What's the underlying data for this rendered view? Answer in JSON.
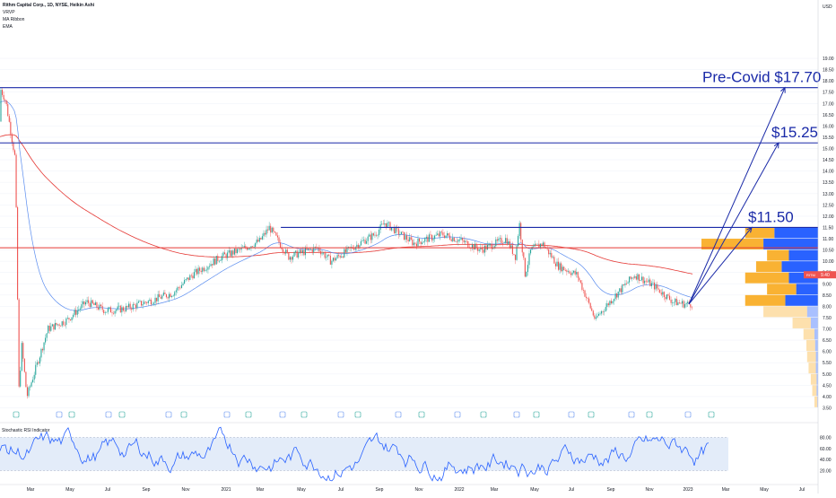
{
  "header": {
    "title": "Rithm Capital Corp., 1D, NYSE, Heikin Ashi",
    "indicators": [
      "VRVP",
      "MA Ribbon",
      "EMA"
    ]
  },
  "price_axis": {
    "currency": "USD",
    "ticks": [
      "19.00",
      "18.50",
      "18.00",
      "17.50",
      "17.00",
      "16.50",
      "16.00",
      "15.50",
      "15.00",
      "14.50",
      "14.00",
      "13.50",
      "13.00",
      "12.50",
      "12.00",
      "11.50",
      "11.00",
      "10.50",
      "10.00",
      "9.50",
      "9.00",
      "8.50",
      "8.00",
      "7.50",
      "7.00",
      "6.50",
      "6.00",
      "5.50",
      "5.00",
      "4.50",
      "4.00",
      "3.50"
    ],
    "last_price": "9.40",
    "last_label": "RITM"
  },
  "oscillator": {
    "name": "Stochastic RSI Indicator",
    "ticks": [
      "80.00",
      "60.00",
      "40.00",
      "20.00"
    ]
  },
  "time_axis": {
    "labels": [
      "Mar",
      "May",
      "Jul",
      "Sep",
      "Nov",
      "2021",
      "Mar",
      "May",
      "Jul",
      "Sep",
      "Nov",
      "2022",
      "Mar",
      "May",
      "Jul",
      "Sep",
      "Nov",
      "2023",
      "Mar",
      "May",
      "Jul"
    ]
  },
  "annotations": {
    "pre_covid": "Pre-Covid  $17.70",
    "mid_target": "$15.25",
    "near_target": "$11.50"
  },
  "colors": {
    "up": "#26a69a",
    "down": "#ef5350",
    "annotation_lines": "#1a2aa8",
    "ema": "#e53935",
    "ma": "#5b8def",
    "vrvp_up": "#2962ff",
    "vrvp_down": "#f9b233",
    "stoch_band": "#e3ecf9",
    "stoch_line": "#2962ff"
  },
  "chart_data": {
    "type": "candlestick",
    "chart_style": "Heikin Ashi",
    "timeframe": "1D",
    "ylim": [
      3.2,
      19.2
    ],
    "key_prices": [
      {
        "date": "2020-02",
        "value": 17.7,
        "note": "pre-covid high"
      },
      {
        "date": "2020-03",
        "value": 3.6,
        "note": "covid low"
      },
      {
        "date": "2021-04",
        "value": 11.5
      },
      {
        "date": "2021-10",
        "value": 11.7
      },
      {
        "date": "2022-05",
        "value": 11.7
      },
      {
        "date": "2022-09",
        "value": 7.3
      },
      {
        "date": "2023-01",
        "value": 8.2
      }
    ],
    "horizontal_levels": [
      17.7,
      15.25,
      11.5,
      10.6
    ],
    "target_arrows": [
      {
        "from": {
          "date": "2023-01",
          "value": 8.1
        },
        "to": {
          "date": "2023-05",
          "value": 17.7
        }
      },
      {
        "from": {
          "date": "2023-01",
          "value": 8.1
        },
        "to": {
          "date": "2023-05",
          "value": 15.25
        }
      },
      {
        "from": {
          "date": "2023-01",
          "value": 8.1
        },
        "to": {
          "date": "2023-04",
          "value": 11.5
        }
      }
    ],
    "volume_profile": [
      {
        "price": 11.25,
        "up": 60,
        "down": 40
      },
      {
        "price": 10.75,
        "up": 75,
        "down": 85
      },
      {
        "price": 10.25,
        "up": 40,
        "down": 30
      },
      {
        "price": 9.75,
        "up": 50,
        "down": 35
      },
      {
        "price": 9.25,
        "up": 40,
        "down": 60
      },
      {
        "price": 8.75,
        "up": 30,
        "down": 40
      },
      {
        "price": 8.25,
        "up": 45,
        "down": 55
      },
      {
        "price": 7.75,
        "up": 15,
        "down": 60
      },
      {
        "price": 7.25,
        "up": 10,
        "down": 25
      },
      {
        "price": 6.75,
        "up": 5,
        "down": 15
      },
      {
        "price": 6.25,
        "up": 4,
        "down": 12
      },
      {
        "price": 5.75,
        "up": 3,
        "down": 12
      },
      {
        "price": 5.25,
        "up": 3,
        "down": 10
      },
      {
        "price": 4.75,
        "up": 2,
        "down": 8
      },
      {
        "price": 4.25,
        "up": 2,
        "down": 6
      },
      {
        "price": 3.75,
        "up": 1,
        "down": 4
      }
    ],
    "stoch_ylim": [
      0,
      100
    ],
    "stoch_band": [
      20,
      80
    ]
  }
}
